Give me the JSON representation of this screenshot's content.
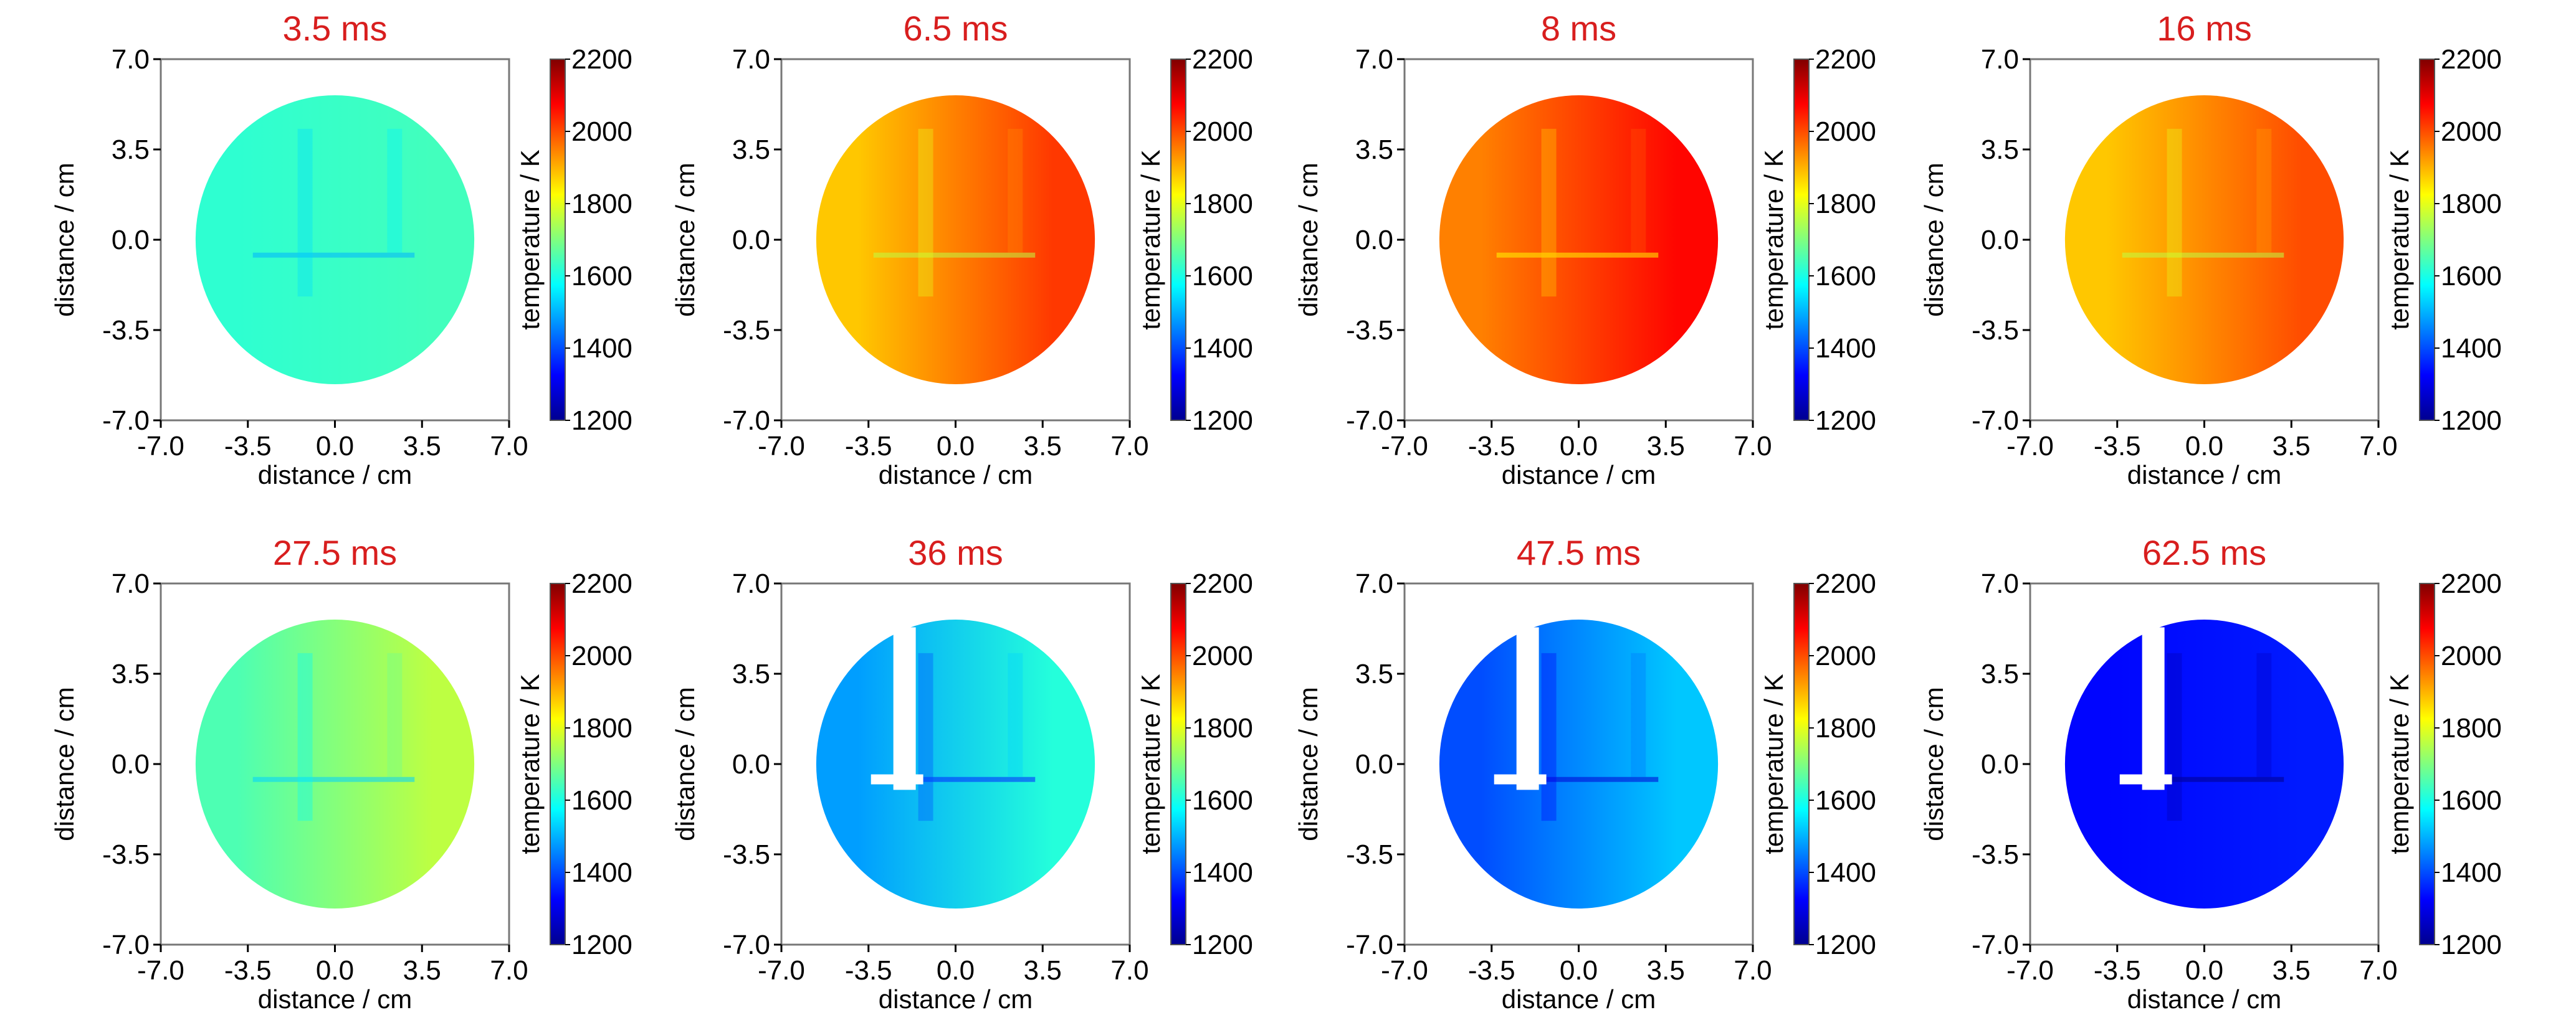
{
  "chart_data": {
    "type": "heatmap",
    "layout": "grid of 2 rows x 4 columns",
    "colormap": "jet",
    "colorbar": {
      "label": "temperature / K",
      "range": [
        1200,
        2200
      ],
      "ticks": [
        "1200",
        "1400",
        "1600",
        "1800",
        "2000",
        "2200"
      ]
    },
    "xlabel": "distance / cm",
    "ylabel": "distance / cm",
    "xlim": [
      -7.0,
      7.0
    ],
    "ylim": [
      -7.0,
      7.0
    ],
    "x_ticks": [
      "-7.0",
      "-3.5",
      "0.0",
      "3.5",
      "7.0"
    ],
    "y_ticks": [
      "7.0",
      "3.5",
      "0.0",
      "-3.5",
      "-7.0"
    ],
    "grid": false,
    "panels": [
      {
        "title": "3.5 ms",
        "left_temperature_K": 1620,
        "right_temperature_K": 1640,
        "white_patches": false
      },
      {
        "title": "6.5 ms",
        "left_temperature_K": 1880,
        "right_temperature_K": 2020,
        "white_patches": false
      },
      {
        "title": "8 ms",
        "left_temperature_K": 1950,
        "right_temperature_K": 2070,
        "white_patches": false
      },
      {
        "title": "16 ms",
        "left_temperature_K": 1880,
        "right_temperature_K": 2000,
        "white_patches": false
      },
      {
        "title": "27.5 ms",
        "left_temperature_K": 1650,
        "right_temperature_K": 1760,
        "white_patches": false
      },
      {
        "title": "36 ms",
        "left_temperature_K": 1480,
        "right_temperature_K": 1610,
        "white_patches": true
      },
      {
        "title": "47.5 ms",
        "left_temperature_K": 1400,
        "right_temperature_K": 1520,
        "white_patches": true
      },
      {
        "title": "62.5 ms",
        "left_temperature_K": 1330,
        "right_temperature_K": 1350,
        "white_patches": true
      }
    ]
  }
}
